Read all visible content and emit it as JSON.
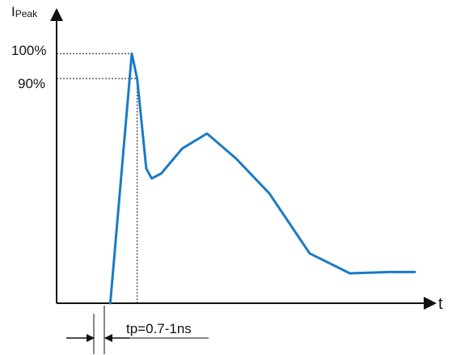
{
  "chart_data": {
    "type": "line",
    "ylabel_main": "I",
    "ylabel_sub": "Peak",
    "xlabel": "t",
    "y_tick_labels": [
      "100%",
      "90%"
    ],
    "y_tick_values": [
      100,
      90
    ],
    "annotation": "tp=0.7-1ns",
    "series": [
      {
        "color": "#1a7bc4",
        "x": [
          1.0,
          1.4,
          1.5,
          1.67,
          1.77,
          1.95,
          2.34,
          2.8,
          3.34,
          3.96,
          4.71,
          5.46,
          6.2,
          6.67
        ],
        "y": [
          0,
          100,
          90,
          54,
          50,
          52,
          62,
          68,
          58,
          44,
          20,
          12,
          12.5,
          12.5
        ]
      }
    ],
    "xlim": [
      0,
      7.0
    ],
    "ylim": [
      0,
      115
    ],
    "grid": false,
    "legend": false
  }
}
